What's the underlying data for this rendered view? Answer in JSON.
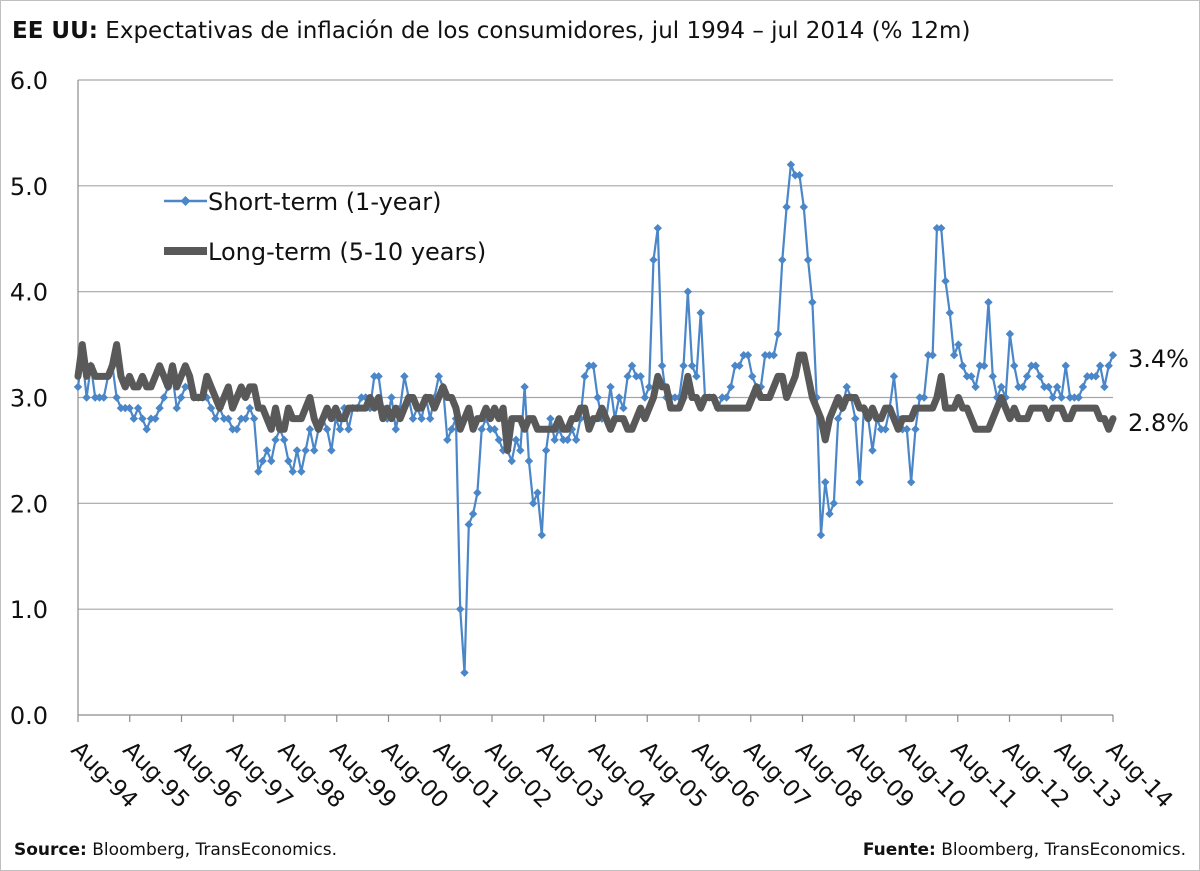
{
  "header": {
    "title_bold": "EE UU:",
    "title_rest": " Expectativas de inflación de los consumidores, jul 1994 – jul 2014 (% 12m)"
  },
  "footer": {
    "left_bold": "Source:",
    "left_text": " Bloomberg, TransEconomics.",
    "right_bold": "Fuente:",
    "right_text": " Bloomberg, TransEconomics."
  },
  "chart_data": {
    "type": "line",
    "title": "EE UU: Expectativas de inflación de los consumidores, jul 1994 – jul 2014 (% 12m)",
    "xlabel": "",
    "ylabel": "",
    "ylim": [
      0,
      6
    ],
    "yticks": [
      "0.0",
      "1.0",
      "2.0",
      "3.0",
      "4.0",
      "5.0",
      "6.0"
    ],
    "x_tick_labels": [
      "Aug-94",
      "Aug-95",
      "Aug-96",
      "Aug-97",
      "Aug-98",
      "Aug-99",
      "Aug-00",
      "Aug-01",
      "Aug-02",
      "Aug-03",
      "Aug-04",
      "Aug-05",
      "Aug-06",
      "Aug-07",
      "Aug-08",
      "Aug-09",
      "Aug-10",
      "Aug-11",
      "Aug-12",
      "Aug-13",
      "Aug-14"
    ],
    "x_start": "Jul-94",
    "x_end": "Jul-14",
    "grid": true,
    "legend_position": "upper-left",
    "series": [
      {
        "name": "Short-term (1-year)",
        "color": "#4a86c8",
        "marker": "diamond",
        "end_label": "3.4%",
        "values": [
          3.1,
          3.4,
          3.0,
          3.3,
          3.0,
          3.0,
          3.0,
          3.2,
          3.3,
          3.0,
          2.9,
          2.9,
          2.9,
          2.8,
          2.9,
          2.8,
          2.7,
          2.8,
          2.8,
          2.9,
          3.0,
          3.1,
          3.2,
          2.9,
          3.0,
          3.1,
          3.1,
          3.0,
          3.0,
          3.0,
          3.0,
          2.9,
          2.8,
          2.9,
          2.8,
          2.8,
          2.7,
          2.7,
          2.8,
          2.8,
          2.9,
          2.8,
          2.3,
          2.4,
          2.5,
          2.4,
          2.6,
          2.7,
          2.6,
          2.4,
          2.3,
          2.5,
          2.3,
          2.5,
          2.7,
          2.5,
          2.7,
          2.8,
          2.7,
          2.5,
          2.8,
          2.7,
          2.9,
          2.7,
          2.9,
          2.9,
          3.0,
          3.0,
          2.9,
          3.2,
          3.2,
          2.9,
          2.8,
          3.0,
          2.7,
          2.9,
          3.2,
          3.0,
          2.8,
          2.9,
          2.8,
          3.0,
          2.8,
          3.0,
          3.2,
          3.1,
          2.6,
          2.7,
          2.8,
          1.0,
          0.4,
          1.8,
          1.9,
          2.1,
          2.7,
          2.8,
          2.7,
          2.7,
          2.6,
          2.5,
          2.5,
          2.4,
          2.6,
          2.5,
          3.1,
          2.4,
          2.0,
          2.1,
          1.7,
          2.5,
          2.8,
          2.6,
          2.7,
          2.6,
          2.6,
          2.7,
          2.6,
          2.8,
          3.2,
          3.3,
          3.3,
          3.0,
          2.8,
          2.8,
          3.1,
          2.8,
          3.0,
          2.9,
          3.2,
          3.3,
          3.2,
          3.2,
          3.0,
          3.1,
          4.3,
          4.6,
          3.3,
          3.0,
          3.0,
          3.0,
          3.0,
          3.3,
          4.0,
          3.3,
          3.2,
          3.8,
          3.0,
          3.0,
          3.0,
          2.9,
          3.0,
          3.0,
          3.1,
          3.3,
          3.3,
          3.4,
          3.4,
          3.2,
          3.1,
          3.1,
          3.4,
          3.4,
          3.4,
          3.6,
          4.3,
          4.8,
          5.2,
          5.1,
          5.1,
          4.8,
          4.3,
          3.9,
          3.0,
          1.7,
          2.2,
          1.9,
          2.0,
          2.8,
          2.9,
          3.1,
          3.0,
          2.8,
          2.2,
          2.9,
          2.8,
          2.5,
          2.8,
          2.7,
          2.7,
          2.9,
          3.2,
          2.8,
          2.7,
          2.7,
          2.2,
          2.7,
          3.0,
          3.0,
          3.4,
          3.4,
          4.6,
          4.6,
          4.1,
          3.8,
          3.4,
          3.5,
          3.3,
          3.2,
          3.2,
          3.1,
          3.3,
          3.3,
          3.9,
          3.2,
          3.0,
          3.1,
          3.0,
          3.6,
          3.3,
          3.1,
          3.1,
          3.2,
          3.3,
          3.3,
          3.2,
          3.1,
          3.1,
          3.0,
          3.1,
          3.0,
          3.3,
          3.0,
          3.0,
          3.0,
          3.1,
          3.2,
          3.2,
          3.2,
          3.3,
          3.1,
          3.3,
          3.4
        ]
      },
      {
        "name": "Long-term (5-10 years)",
        "color": "#595959",
        "marker": "none",
        "end_label": "2.8%",
        "values": [
          3.2,
          3.5,
          3.2,
          3.3,
          3.2,
          3.2,
          3.2,
          3.2,
          3.3,
          3.5,
          3.2,
          3.1,
          3.2,
          3.1,
          3.1,
          3.2,
          3.1,
          3.1,
          3.2,
          3.3,
          3.2,
          3.1,
          3.3,
          3.1,
          3.2,
          3.3,
          3.2,
          3.0,
          3.0,
          3.0,
          3.2,
          3.1,
          3.0,
          2.9,
          3.0,
          3.1,
          2.9,
          3.0,
          3.1,
          3.0,
          3.1,
          3.1,
          2.9,
          2.9,
          2.8,
          2.7,
          2.9,
          2.7,
          2.7,
          2.9,
          2.8,
          2.8,
          2.8,
          2.9,
          3.0,
          2.8,
          2.7,
          2.8,
          2.9,
          2.8,
          2.9,
          2.8,
          2.8,
          2.9,
          2.9,
          2.9,
          2.9,
          2.9,
          3.0,
          2.9,
          3.0,
          2.8,
          2.9,
          2.8,
          2.9,
          2.8,
          2.9,
          3.0,
          3.0,
          2.9,
          2.9,
          3.0,
          3.0,
          2.9,
          3.0,
          3.1,
          3.0,
          3.0,
          2.9,
          2.7,
          2.8,
          2.9,
          2.7,
          2.8,
          2.8,
          2.9,
          2.8,
          2.9,
          2.8,
          2.9,
          2.5,
          2.8,
          2.8,
          2.8,
          2.7,
          2.8,
          2.8,
          2.7,
          2.7,
          2.7,
          2.7,
          2.7,
          2.8,
          2.7,
          2.7,
          2.8,
          2.8,
          2.9,
          2.9,
          2.7,
          2.8,
          2.8,
          2.9,
          2.8,
          2.7,
          2.8,
          2.8,
          2.8,
          2.7,
          2.7,
          2.8,
          2.9,
          2.8,
          2.9,
          3.0,
          3.2,
          3.1,
          3.1,
          2.9,
          2.9,
          2.9,
          3.0,
          3.2,
          3.0,
          3.0,
          2.9,
          3.0,
          3.0,
          3.0,
          2.9,
          2.9,
          2.9,
          2.9,
          2.9,
          2.9,
          2.9,
          2.9,
          3.0,
          3.1,
          3.0,
          3.0,
          3.0,
          3.1,
          3.2,
          3.2,
          3.0,
          3.1,
          3.2,
          3.4,
          3.4,
          3.2,
          3.0,
          2.9,
          2.8,
          2.6,
          2.8,
          2.9,
          3.0,
          2.9,
          3.0,
          3.0,
          3.0,
          2.9,
          2.9,
          2.8,
          2.9,
          2.8,
          2.8,
          2.9,
          2.9,
          2.8,
          2.7,
          2.8,
          2.8,
          2.8,
          2.9,
          2.9,
          2.9,
          2.9,
          2.9,
          3.0,
          3.2,
          2.9,
          2.9,
          2.9,
          3.0,
          2.9,
          2.9,
          2.8,
          2.7,
          2.7,
          2.7,
          2.7,
          2.8,
          2.9,
          3.0,
          2.9,
          2.8,
          2.9,
          2.8,
          2.8,
          2.8,
          2.9,
          2.9,
          2.9,
          2.9,
          2.8,
          2.9,
          2.9,
          2.9,
          2.8,
          2.8,
          2.9,
          2.9,
          2.9,
          2.9,
          2.9,
          2.9,
          2.8,
          2.8,
          2.7,
          2.8
        ]
      }
    ]
  }
}
